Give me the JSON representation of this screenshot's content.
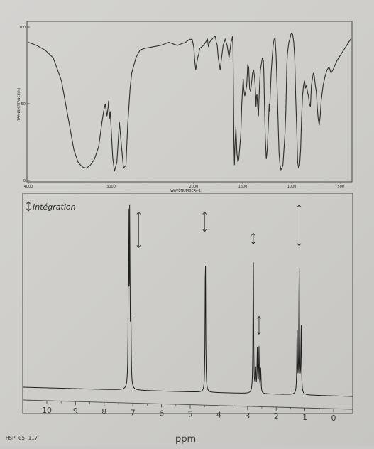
{
  "chart_data": [
    {
      "type": "line",
      "panel": "ir-spectrum",
      "title": "",
      "xlabel": "WAVENUMBER(-1)",
      "ylabel": "TRANSMITTANCE(%)",
      "xlim": [
        4000,
        400
      ],
      "ylim": [
        0,
        100
      ],
      "x_ticks": [
        "4000",
        "3000",
        "2000",
        "1500",
        "1000",
        "500"
      ],
      "x_tick_values": [
        4000,
        3000,
        2000,
        1500,
        1000,
        500
      ],
      "y_ticks": [
        "0",
        "50",
        "100"
      ],
      "y_tick_values": [
        0,
        50,
        100
      ],
      "series": [
        {
          "x": [
            4000,
            3900,
            3800,
            3700,
            3600,
            3500,
            3450,
            3400,
            3350,
            3300,
            3250,
            3200,
            3150,
            3110,
            3090,
            3070,
            3050,
            3035,
            3030,
            3020,
            3010,
            3000,
            2980,
            2960,
            2930,
            2900,
            2870,
            2850,
            2820,
            2800,
            2770,
            2750,
            2700,
            2650,
            2600,
            2500,
            2400,
            2300,
            2200,
            2100,
            2050,
            2020,
            2000,
            1990,
            1980,
            1960,
            1950,
            1940,
            1900,
            1880,
            1860,
            1850,
            1840,
            1800,
            1780,
            1770,
            1760,
            1750,
            1730,
            1720,
            1700,
            1690,
            1680,
            1660,
            1640,
            1620,
            1610,
            1605,
            1600,
            1595,
            1590,
            1585,
            1580,
            1570,
            1560,
            1550,
            1540,
            1520,
            1510,
            1500,
            1495,
            1490,
            1480,
            1470,
            1460,
            1455,
            1450,
            1440,
            1430,
            1420,
            1410,
            1400,
            1390,
            1380,
            1370,
            1365,
            1360,
            1355,
            1350,
            1340,
            1330,
            1320,
            1300,
            1290,
            1285,
            1280,
            1270,
            1260,
            1250,
            1240,
            1230,
            1225,
            1220,
            1210,
            1200,
            1190,
            1180,
            1170,
            1160,
            1150,
            1140,
            1130,
            1120,
            1110,
            1100,
            1090,
            1080,
            1070,
            1060,
            1055,
            1050,
            1045,
            1040,
            1030,
            1020,
            1010,
            1000,
            990,
            980,
            970,
            960,
            950,
            940,
            930,
            920,
            910,
            900,
            890,
            880,
            870,
            860,
            850,
            840,
            830,
            820,
            810,
            800,
            790,
            780,
            770,
            760,
            750,
            740,
            730,
            720,
            710,
            700,
            680,
            660,
            640,
            620,
            600,
            580,
            560,
            540,
            520,
            500,
            480,
            460,
            440,
            420,
            400
          ],
          "y": [
            90,
            88,
            85,
            80,
            65,
            35,
            20,
            12,
            9,
            8,
            10,
            14,
            22,
            38,
            45,
            50,
            42,
            48,
            52,
            40,
            45,
            35,
            15,
            6,
            12,
            38,
            20,
            8,
            10,
            35,
            60,
            70,
            80,
            85,
            86,
            87,
            88,
            90,
            88,
            90,
            92,
            92,
            87,
            78,
            72,
            80,
            82,
            86,
            88,
            90,
            92,
            87,
            90,
            93,
            94,
            90,
            88,
            80,
            72,
            78,
            88,
            90,
            92,
            88,
            80,
            90,
            92,
            94,
            86,
            60,
            25,
            10,
            22,
            35,
            18,
            12,
            14,
            30,
            50,
            62,
            66,
            60,
            55,
            58,
            62,
            68,
            75,
            74,
            60,
            58,
            64,
            70,
            72,
            68,
            58,
            48,
            55,
            56,
            50,
            42,
            60,
            72,
            80,
            78,
            70,
            55,
            28,
            14,
            20,
            35,
            50,
            45,
            55,
            70,
            80,
            88,
            92,
            93,
            82,
            62,
            40,
            18,
            10,
            7,
            8,
            10,
            20,
            30,
            45,
            60,
            75,
            82,
            85,
            90,
            92,
            95,
            96,
            95,
            90,
            80,
            55,
            35,
            12,
            8,
            10,
            20,
            40,
            55,
            62,
            65,
            60,
            62,
            58,
            55,
            50,
            48,
            62,
            66,
            70,
            68,
            62,
            58,
            48,
            40,
            36,
            42,
            52,
            62,
            68,
            72,
            74,
            70,
            72,
            75,
            78,
            80,
            82,
            84,
            86,
            88,
            90,
            92
          ]
        }
      ]
    },
    {
      "type": "line",
      "panel": "nmr-spectrum",
      "title": "",
      "xlabel": "ppm",
      "xlim": [
        11,
        -0.6
      ],
      "x_ticks": [
        "10",
        "9",
        "8",
        "7",
        "6",
        "5",
        "4",
        "3",
        "2",
        "1",
        "0"
      ],
      "x_tick_values": [
        10,
        9,
        8,
        7,
        6,
        5,
        4,
        3,
        2,
        1,
        0
      ],
      "peaks": [
        {
          "shift": 7.15,
          "height": 0.985,
          "multiplicity": "m"
        },
        {
          "shift": 7.11,
          "height": 0.97,
          "multiplicity": "m"
        },
        {
          "shift": 7.07,
          "height": 0.38,
          "multiplicity": "m"
        },
        {
          "shift": 4.47,
          "height": 0.835,
          "multiplicity": "s"
        },
        {
          "shift": 2.8,
          "height": 0.81,
          "multiplicity": "s"
        },
        {
          "shift": 2.72,
          "height": 0.14,
          "multiplicity": "q"
        },
        {
          "shift": 2.66,
          "height": 0.25,
          "multiplicity": "q"
        },
        {
          "shift": 2.6,
          "height": 0.25,
          "multiplicity": "q"
        },
        {
          "shift": 2.54,
          "height": 0.14,
          "multiplicity": "q"
        },
        {
          "shift": 1.27,
          "height": 0.39,
          "multiplicity": "t"
        },
        {
          "shift": 1.2,
          "height": 0.76,
          "multiplicity": "t"
        },
        {
          "shift": 1.13,
          "height": 0.39,
          "multiplicity": "t"
        }
      ],
      "integration_arrows": [
        {
          "shift": 6.8,
          "top": 0.99,
          "bottom": 0.79
        },
        {
          "shift": 4.5,
          "top": 0.99,
          "bottom": 0.88
        },
        {
          "shift": 2.8,
          "top": 0.87,
          "bottom": 0.81
        },
        {
          "shift": 2.6,
          "top": 0.4,
          "bottom": 0.3
        },
        {
          "shift": 1.2,
          "top": 1.03,
          "bottom": 0.8
        }
      ]
    }
  ],
  "integration_label": "Intégration",
  "spectrum_code": "HSP-05-117"
}
